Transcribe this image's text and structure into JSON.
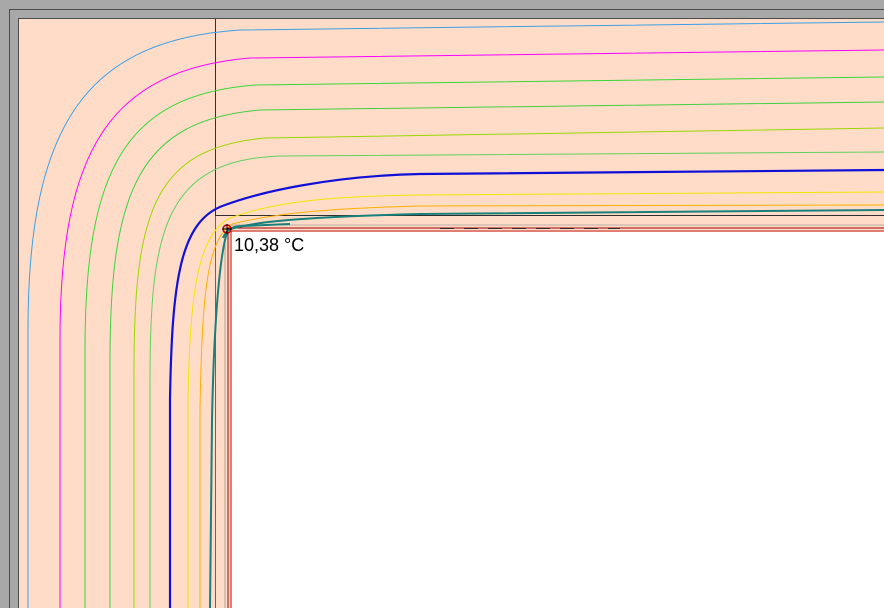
{
  "viewer": {
    "probe_temperature": "10,38 °C"
  },
  "colors": {
    "frame_gray": "#a8a8a8",
    "frame_dark": "#4c4c4c",
    "material_fill": "#ffdcc8",
    "interior_fill": "#ffffff",
    "probe_marker": "#c00000",
    "surface_line": "#a00000",
    "isotherms": [
      {
        "name": "light-blue",
        "color": "#3aa0e8",
        "width": 1
      },
      {
        "name": "magenta",
        "color": "#ff00ff",
        "width": 1
      },
      {
        "name": "green-1",
        "color": "#38d838",
        "width": 1
      },
      {
        "name": "green-2",
        "color": "#40d040",
        "width": 1
      },
      {
        "name": "yellow-green",
        "color": "#9ad800",
        "width": 1
      },
      {
        "name": "dark-blue",
        "color": "#1010d8",
        "width": 2.2
      },
      {
        "name": "yellow",
        "color": "#f2e600",
        "width": 1
      },
      {
        "name": "orange",
        "color": "#ffb000",
        "width": 1
      },
      {
        "name": "teal",
        "color": "#18807a",
        "width": 2
      }
    ]
  }
}
